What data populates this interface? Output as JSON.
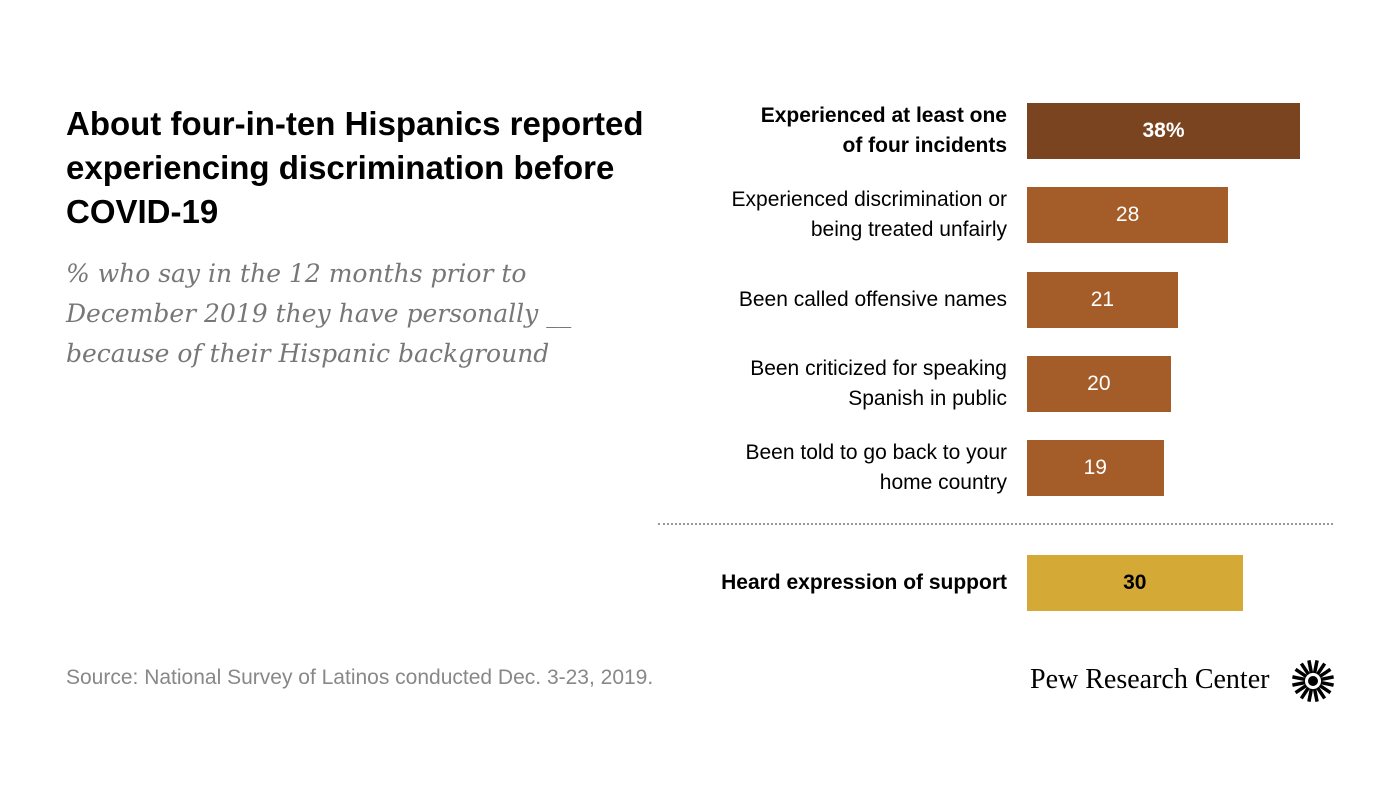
{
  "title": "About four-in-ten Hispanics reported experiencing discrimination before COVID-19",
  "subtitle": "% who say in the 12 months prior to December 2019 they have personally __ because of their Hispanic background",
  "source": "Source: National Survey of Latinos conducted Dec. 3-23, 2019.",
  "logo_text": "Pew Research Center",
  "chart_data": {
    "type": "bar",
    "orientation": "horizontal",
    "xlim": [
      0,
      38
    ],
    "categories": [
      "Experienced at least one of four incidents",
      "Experienced discrimination or being treated unfairly",
      "Been called offensive names",
      "Been criticized  for speaking Spanish in public",
      "Been told to go back to your home country",
      "Heard expression of support"
    ],
    "values": [
      38,
      28,
      21,
      20,
      19,
      30
    ],
    "value_labels": [
      "38%",
      "28",
      "21",
      "20",
      "19",
      "30"
    ],
    "colors": [
      "#7B4420",
      "#A45C28",
      "#A45C28",
      "#A45C28",
      "#A45C28",
      "#D4A935"
    ],
    "label_colors": [
      "#ffffff",
      "#ffffff",
      "#ffffff",
      "#ffffff",
      "#ffffff",
      "#000000"
    ],
    "bold": [
      true,
      false,
      false,
      false,
      false,
      true
    ]
  }
}
